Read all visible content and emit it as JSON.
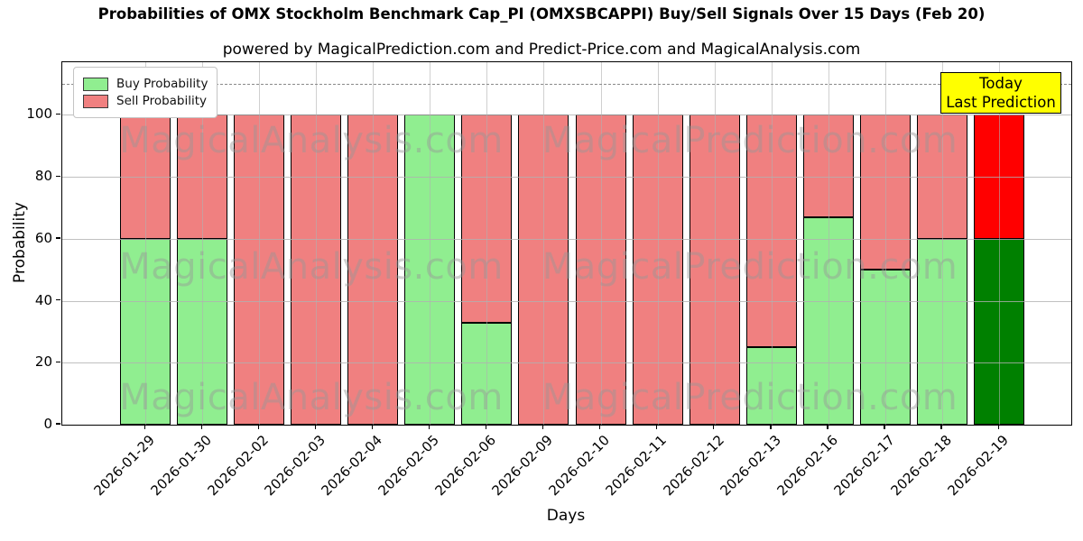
{
  "title": "Probabilities of OMX Stockholm Benchmark Cap_PI (OMXSBCAPPI) Buy/Sell Signals Over 15 Days (Feb 20)",
  "subtitle": "powered by MagicalPrediction.com and Predict-Price.com and MagicalAnalysis.com",
  "legend": {
    "buy_label": "Buy Probability",
    "sell_label": "Sell Probability"
  },
  "annotation": {
    "line1": "Today",
    "line2": "Last Prediction",
    "bg_color": "#FFFF00"
  },
  "watermarks": {
    "left": "MagicalAnalysis.com",
    "right": "MagicalPrediction.com"
  },
  "colors": {
    "buy": "#90EE90",
    "sell": "#F08080",
    "today_buy": "#008000",
    "today_sell": "#FF0000",
    "grid": "#b0b0b0",
    "dashed_line": "#8a8a8a"
  },
  "chart_data": {
    "type": "bar",
    "stacked": true,
    "title": "Probabilities of OMX Stockholm Benchmark Cap_PI (OMXSBCAPPI) Buy/Sell Signals Over 15 Days (Feb 20)",
    "subtitle": "powered by MagicalPrediction.com and Predict-Price.com and MagicalAnalysis.com",
    "xlabel": "Days",
    "ylabel": "Probability",
    "categories": [
      "2026-01-29",
      "2026-01-30",
      "2026-02-02",
      "2026-02-03",
      "2026-02-04",
      "2026-02-05",
      "2026-02-06",
      "2026-02-09",
      "2026-02-10",
      "2026-02-11",
      "2026-02-12",
      "2026-02-13",
      "2026-02-16",
      "2026-02-17",
      "2026-02-18",
      "2026-02-19"
    ],
    "series": [
      {
        "name": "Buy Probability",
        "color": "#90EE90",
        "today_color": "#008000",
        "values": [
          60,
          60,
          0,
          0,
          0,
          100,
          33,
          0,
          0,
          0,
          0,
          25,
          67,
          50,
          60,
          60
        ]
      },
      {
        "name": "Sell Probability",
        "color": "#F08080",
        "today_color": "#FF0000",
        "values": [
          40,
          40,
          100,
          100,
          100,
          0,
          67,
          100,
          100,
          100,
          100,
          75,
          33,
          50,
          40,
          40
        ]
      }
    ],
    "today_index": 15,
    "yticks": [
      0,
      20,
      40,
      60,
      80,
      100
    ],
    "ylim": [
      0,
      117
    ],
    "dashed_line_y": 110,
    "grid": true,
    "legend_position": "upper left",
    "annotation_text": "Today\nLast Prediction"
  }
}
